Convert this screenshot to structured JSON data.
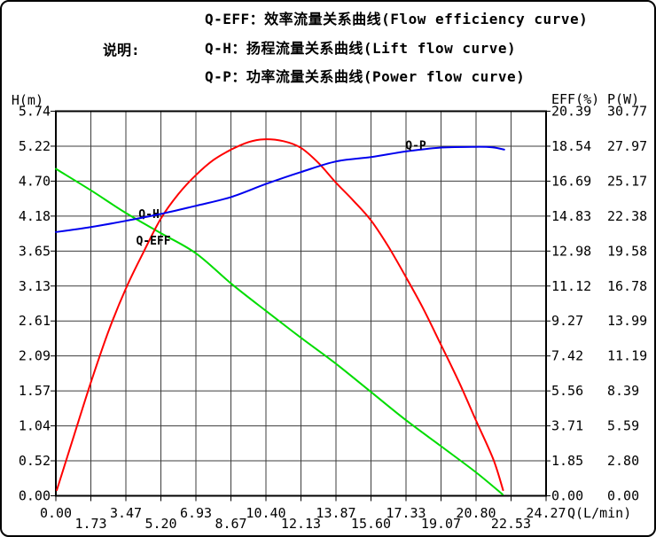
{
  "header": {
    "label": "说明:",
    "lines": [
      "Q-EFF：效率流量关系曲线(Flow efficiency curve)",
      "Q-H：扬程流量关系曲线(Lift flow curve)",
      "Q-P：功率流量关系曲线(Power flow curve)"
    ]
  },
  "chart_data": {
    "type": "line",
    "grid": true,
    "legend_position": "labels-on-curves",
    "x_axis": {
      "title": "Q(L/min)",
      "min": 0,
      "max": 24.27,
      "tick_labels": [
        "0.00",
        "1.73",
        "3.47",
        "5.20",
        "6.93",
        "8.67",
        "10.40",
        "12.13",
        "13.87",
        "15.60",
        "17.33",
        "19.07",
        "20.80",
        "22.53",
        "24.27"
      ]
    },
    "y_axis_left": {
      "title": "H(m)",
      "min": 0,
      "max": 5.74,
      "tick_labels": [
        "5.74",
        "5.22",
        "4.70",
        "4.18",
        "3.65",
        "3.13",
        "2.61",
        "2.09",
        "1.57",
        "1.04",
        "0.52",
        "0.00"
      ]
    },
    "y_axis_right_eff": {
      "title": "EFF(%)",
      "min": 0,
      "max": 20.39,
      "tick_labels": [
        "20.39",
        "18.54",
        "16.69",
        "14.83",
        "12.98",
        "11.12",
        "9.27",
        "7.42",
        "5.56",
        "3.71",
        "1.85",
        "0.00"
      ]
    },
    "y_axis_right_power": {
      "title": "P(W)",
      "min": 0,
      "max": 30.77,
      "tick_labels": [
        "30.77",
        "27.97",
        "25.17",
        "22.38",
        "19.58",
        "16.78",
        "13.99",
        "11.19",
        "8.39",
        "5.59",
        "2.80",
        "0.00"
      ]
    },
    "series": [
      {
        "name": "Q-H",
        "axis": "H",
        "color": "#00dc00",
        "label_anchor": {
          "q": 4.61,
          "v": 4.2
        },
        "points": [
          [
            0,
            4.88
          ],
          [
            1.73,
            4.56
          ],
          [
            3.47,
            4.22
          ],
          [
            5.2,
            3.92
          ],
          [
            6.93,
            3.62
          ],
          [
            8.67,
            3.17
          ],
          [
            10.4,
            2.76
          ],
          [
            12.13,
            2.36
          ],
          [
            13.87,
            1.97
          ],
          [
            15.6,
            1.55
          ],
          [
            17.33,
            1.13
          ],
          [
            19.07,
            0.74
          ],
          [
            20.8,
            0.35
          ],
          [
            22.12,
            0.02
          ]
        ]
      },
      {
        "name": "Q-EFF",
        "axis": "EFF",
        "color": "#ff0000",
        "label_anchor": {
          "q": 4.83,
          "v": 13.51
        },
        "points": [
          [
            0.05,
            0.3
          ],
          [
            0.9,
            3.2
          ],
          [
            1.73,
            6.0
          ],
          [
            2.6,
            8.7
          ],
          [
            3.47,
            11.0
          ],
          [
            4.33,
            12.9
          ],
          [
            5.2,
            14.7
          ],
          [
            6.07,
            16.0
          ],
          [
            6.93,
            17.0
          ],
          [
            7.8,
            17.8
          ],
          [
            8.67,
            18.35
          ],
          [
            9.53,
            18.75
          ],
          [
            10.3,
            18.9
          ],
          [
            11.27,
            18.8
          ],
          [
            12.13,
            18.45
          ],
          [
            13.0,
            17.65
          ],
          [
            13.87,
            16.6
          ],
          [
            14.73,
            15.65
          ],
          [
            15.6,
            14.6
          ],
          [
            16.47,
            13.2
          ],
          [
            17.33,
            11.6
          ],
          [
            18.2,
            9.9
          ],
          [
            19.07,
            8.0
          ],
          [
            19.93,
            6.1
          ],
          [
            20.8,
            4.0
          ],
          [
            21.67,
            1.9
          ],
          [
            22.14,
            0.3
          ]
        ]
      },
      {
        "name": "Q-P",
        "axis": "P",
        "color": "#0000ee",
        "label_anchor": {
          "q": 17.82,
          "v": 28.0
        },
        "points": [
          [
            0,
            21.1
          ],
          [
            1.73,
            21.5
          ],
          [
            3.47,
            22.0
          ],
          [
            5.2,
            22.55
          ],
          [
            6.93,
            23.2
          ],
          [
            8.67,
            23.9
          ],
          [
            10.4,
            24.95
          ],
          [
            12.13,
            25.9
          ],
          [
            13.87,
            26.75
          ],
          [
            15.6,
            27.1
          ],
          [
            17.33,
            27.55
          ],
          [
            18.96,
            27.85
          ],
          [
            20.8,
            27.92
          ],
          [
            21.6,
            27.88
          ],
          [
            22.2,
            27.7
          ]
        ]
      }
    ],
    "colors": {
      "grid": "#3c3c3c",
      "border": "#000000",
      "text": "#000000"
    }
  }
}
